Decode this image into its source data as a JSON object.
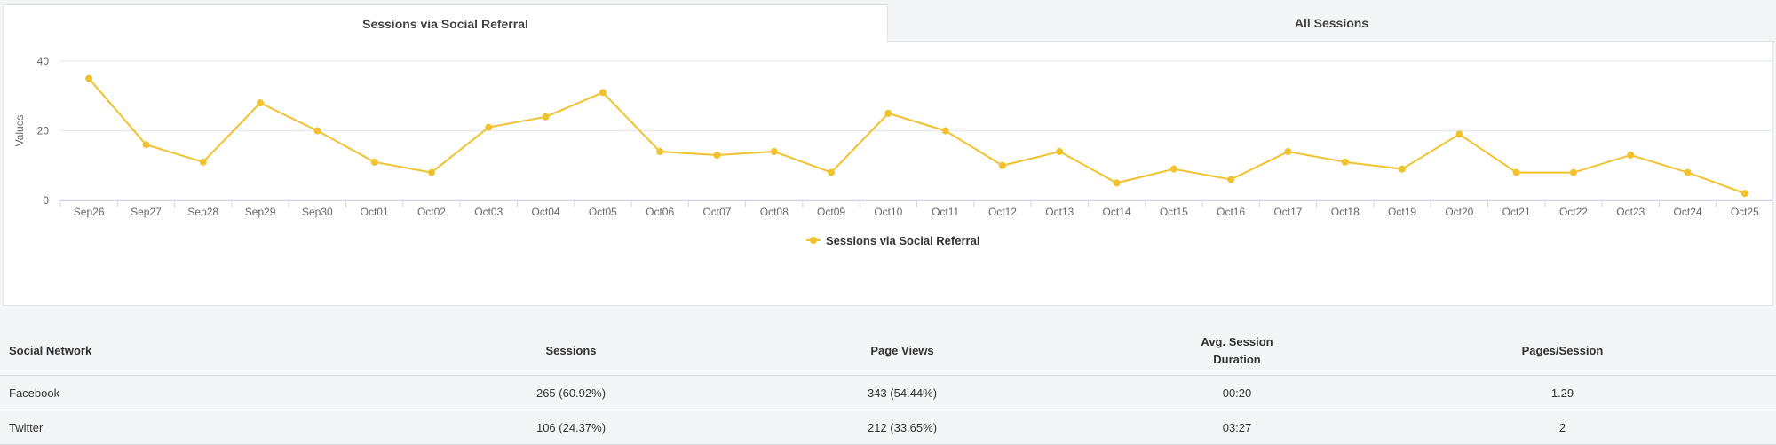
{
  "tabs": [
    {
      "label": "Sessions via Social Referral",
      "active": true
    },
    {
      "label": "All Sessions",
      "active": false
    }
  ],
  "colors": {
    "line": "#f2c12e",
    "grid": "#e3e6ea",
    "axis": "#ccd6eb"
  },
  "chart_data": {
    "type": "line",
    "ylabel": "Values",
    "ylim": [
      0,
      40
    ],
    "yticks": [
      0,
      20,
      40
    ],
    "grid": true,
    "legend_position": "bottom-center",
    "categories": [
      "Sep26",
      "Sep27",
      "Sep28",
      "Sep29",
      "Sep30",
      "Oct01",
      "Oct02",
      "Oct03",
      "Oct04",
      "Oct05",
      "Oct06",
      "Oct07",
      "Oct08",
      "Oct09",
      "Oct10",
      "Oct11",
      "Oct12",
      "Oct13",
      "Oct14",
      "Oct15",
      "Oct16",
      "Oct17",
      "Oct18",
      "Oct19",
      "Oct20",
      "Oct21",
      "Oct22",
      "Oct23",
      "Oct24",
      "Oct25"
    ],
    "series": [
      {
        "name": "Sessions via Social Referral",
        "values": [
          35,
          16,
          11,
          28,
          20,
          11,
          8,
          21,
          24,
          31,
          14,
          13,
          14,
          8,
          25,
          20,
          10,
          14,
          5,
          9,
          6,
          14,
          11,
          9,
          19,
          8,
          8,
          13,
          8,
          2
        ]
      }
    ]
  },
  "table": {
    "headers": [
      [
        "Social Network"
      ],
      [
        "Sessions"
      ],
      [
        "Page Views"
      ],
      [
        "Avg. Session",
        "Duration"
      ],
      [
        "Pages/Session"
      ]
    ],
    "rows": [
      [
        "Facebook",
        "265 (60.92%)",
        "343 (54.44%)",
        "00:20",
        "1.29"
      ],
      [
        "Twitter",
        "106 (24.37%)",
        "212 (33.65%)",
        "03:27",
        "2"
      ]
    ]
  }
}
